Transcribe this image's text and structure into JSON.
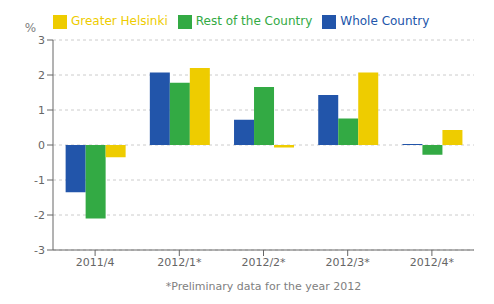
{
  "chart_data": {
    "type": "bar",
    "categories": [
      "2011/4",
      "2012/1*",
      "2012/2*",
      "2012/3*",
      "2012/4*"
    ],
    "series": [
      {
        "name": "Whole Country",
        "color": "#2255aa",
        "values": [
          -1.35,
          2.07,
          0.72,
          1.43,
          0.03
        ]
      },
      {
        "name": "Rest of the Country",
        "color": "#33aa44",
        "values": [
          -2.1,
          1.78,
          1.66,
          0.76,
          -0.28
        ]
      },
      {
        "name": "Greater Helsinki",
        "color": "#eecc00",
        "values": [
          -0.35,
          2.2,
          -0.07,
          2.07,
          0.43
        ]
      }
    ],
    "ylabel": "%",
    "xlabel": "*Preliminary data for the year 2012",
    "ylim": [
      -3,
      3
    ],
    "yticks": [
      -3,
      -2,
      -1,
      0,
      1,
      2,
      3
    ],
    "grid": true,
    "legend": "upper left"
  }
}
